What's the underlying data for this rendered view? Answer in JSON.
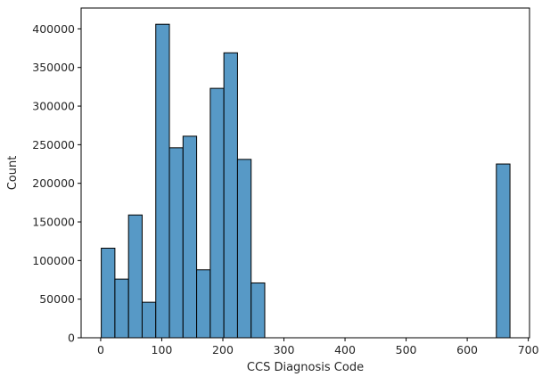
{
  "chart_data": {
    "type": "bar",
    "subtype": "histogram",
    "xlabel": "CCS Diagnosis Code",
    "ylabel": "Count",
    "xlim": [
      -32,
      702
    ],
    "ylim": [
      0,
      427000
    ],
    "x_ticks": [
      0,
      100,
      200,
      300,
      400,
      500,
      600,
      700
    ],
    "y_ticks": [
      0,
      50000,
      100000,
      150000,
      200000,
      250000,
      300000,
      350000,
      400000
    ],
    "bin_width": 22.3,
    "bins": [
      {
        "x_start": 1.0,
        "count": 116000
      },
      {
        "x_start": 23.3,
        "count": 76000
      },
      {
        "x_start": 45.6,
        "count": 159000
      },
      {
        "x_start": 67.9,
        "count": 46000
      },
      {
        "x_start": 90.2,
        "count": 406000
      },
      {
        "x_start": 112.5,
        "count": 246000
      },
      {
        "x_start": 134.8,
        "count": 261000
      },
      {
        "x_start": 157.1,
        "count": 88000
      },
      {
        "x_start": 179.4,
        "count": 323000
      },
      {
        "x_start": 201.7,
        "count": 369000
      },
      {
        "x_start": 224.0,
        "count": 231000
      },
      {
        "x_start": 246.3,
        "count": 71000
      },
      {
        "x_start": 268.6,
        "count": 0
      },
      {
        "x_start": 290.9,
        "count": 0
      },
      {
        "x_start": 313.2,
        "count": 0
      },
      {
        "x_start": 335.5,
        "count": 0
      },
      {
        "x_start": 357.8,
        "count": 0
      },
      {
        "x_start": 380.1,
        "count": 0
      },
      {
        "x_start": 402.4,
        "count": 0
      },
      {
        "x_start": 424.7,
        "count": 0
      },
      {
        "x_start": 447.0,
        "count": 0
      },
      {
        "x_start": 469.3,
        "count": 0
      },
      {
        "x_start": 491.6,
        "count": 0
      },
      {
        "x_start": 513.9,
        "count": 0
      },
      {
        "x_start": 536.2,
        "count": 0
      },
      {
        "x_start": 558.5,
        "count": 0
      },
      {
        "x_start": 580.8,
        "count": 0
      },
      {
        "x_start": 603.1,
        "count": 0
      },
      {
        "x_start": 625.4,
        "count": 0
      },
      {
        "x_start": 647.7,
        "count": 225000
      }
    ],
    "colors": {
      "bar_fill": "#5799c6",
      "bar_edge": "#000000",
      "axis": "#000000",
      "text": "#262626"
    },
    "grid": false,
    "legend": "none"
  }
}
